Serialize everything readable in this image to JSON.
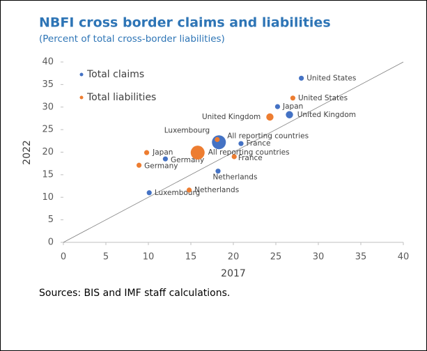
{
  "chart_data": {
    "type": "scatter",
    "title": "NBFI cross border claims and liabilities",
    "subtitle": "(Percent of total cross-border liabilities)",
    "x_label": "2017",
    "y_label": "2022",
    "xlim": [
      0,
      40
    ],
    "ylim": [
      0,
      40
    ],
    "xticks": [
      0,
      5,
      10,
      15,
      20,
      25,
      30,
      35,
      40
    ],
    "yticks": [
      0,
      5,
      10,
      15,
      20,
      25,
      30,
      35,
      40
    ],
    "legend": "top-left",
    "series": [
      {
        "name": "Total claims",
        "color": "#4472c4",
        "labels": [
          "United States",
          "Japan",
          "United Kingdom",
          "All reporting countries",
          "France",
          "Germany",
          "Netherlands",
          "Luxembourg"
        ],
        "x": [
          28.0,
          25.2,
          26.6,
          18.3,
          20.9,
          12.0,
          18.2,
          10.1
        ],
        "values": [
          36.4,
          30.1,
          28.3,
          22.2,
          21.9,
          18.5,
          15.8,
          11.0
        ],
        "sizes": [
          1,
          1,
          2,
          5,
          1,
          1,
          1,
          1
        ]
      },
      {
        "name": "Total liabilities",
        "color": "#ed7d31",
        "labels": [
          "United States",
          "United Kingdom",
          "Japan",
          "Germany",
          "All reporting countries",
          "France",
          "Netherlands",
          "Luxembourg"
        ],
        "x": [
          27.0,
          24.3,
          9.8,
          8.9,
          15.8,
          20.1,
          14.8,
          18.1
        ],
        "values": [
          32.0,
          27.8,
          19.9,
          17.1,
          19.9,
          19.0,
          11.6,
          22.8
        ],
        "sizes": [
          1,
          2,
          1,
          1,
          5,
          1,
          1,
          1
        ]
      }
    ],
    "note": "Sources: BIS and IMF staff calculations."
  }
}
